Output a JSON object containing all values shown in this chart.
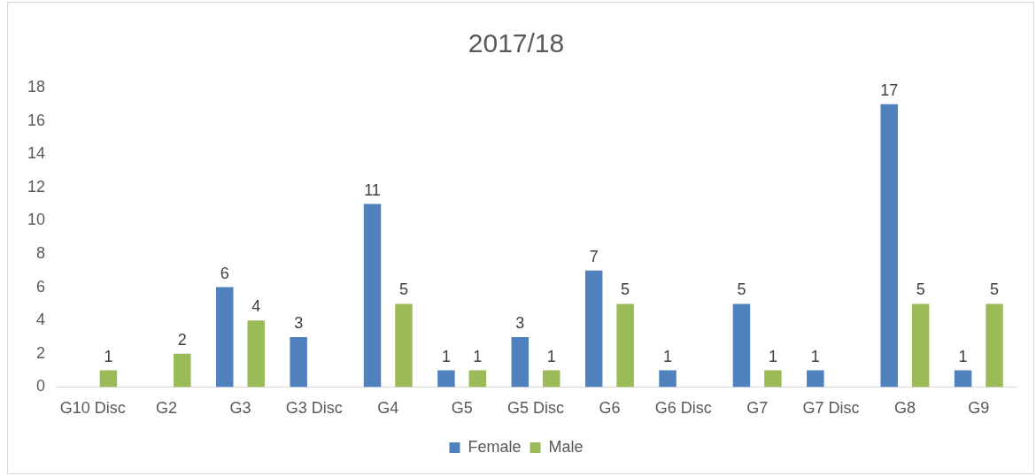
{
  "chart_data": {
    "type": "bar",
    "title": "2017/18",
    "categories": [
      "G10 Disc",
      "G2",
      "G3",
      "G3 Disc",
      "G4",
      "G5",
      "G5 Disc",
      "G6",
      "G6 Disc",
      "G7",
      "G7 Disc",
      "G8",
      "G9"
    ],
    "series": [
      {
        "name": "Female",
        "color": "#4f81bd",
        "values": [
          null,
          null,
          6,
          3,
          11,
          1,
          3,
          7,
          1,
          5,
          1,
          17,
          1
        ]
      },
      {
        "name": "Male",
        "color": "#9bbb59",
        "values": [
          1,
          2,
          4,
          null,
          5,
          1,
          1,
          5,
          null,
          1,
          null,
          5,
          5
        ]
      }
    ],
    "ylim": [
      0,
      18
    ],
    "yticks": [
      0,
      2,
      4,
      6,
      8,
      10,
      12,
      14,
      16,
      18
    ],
    "grid": false,
    "legend": "bottom",
    "data_labels": true
  }
}
